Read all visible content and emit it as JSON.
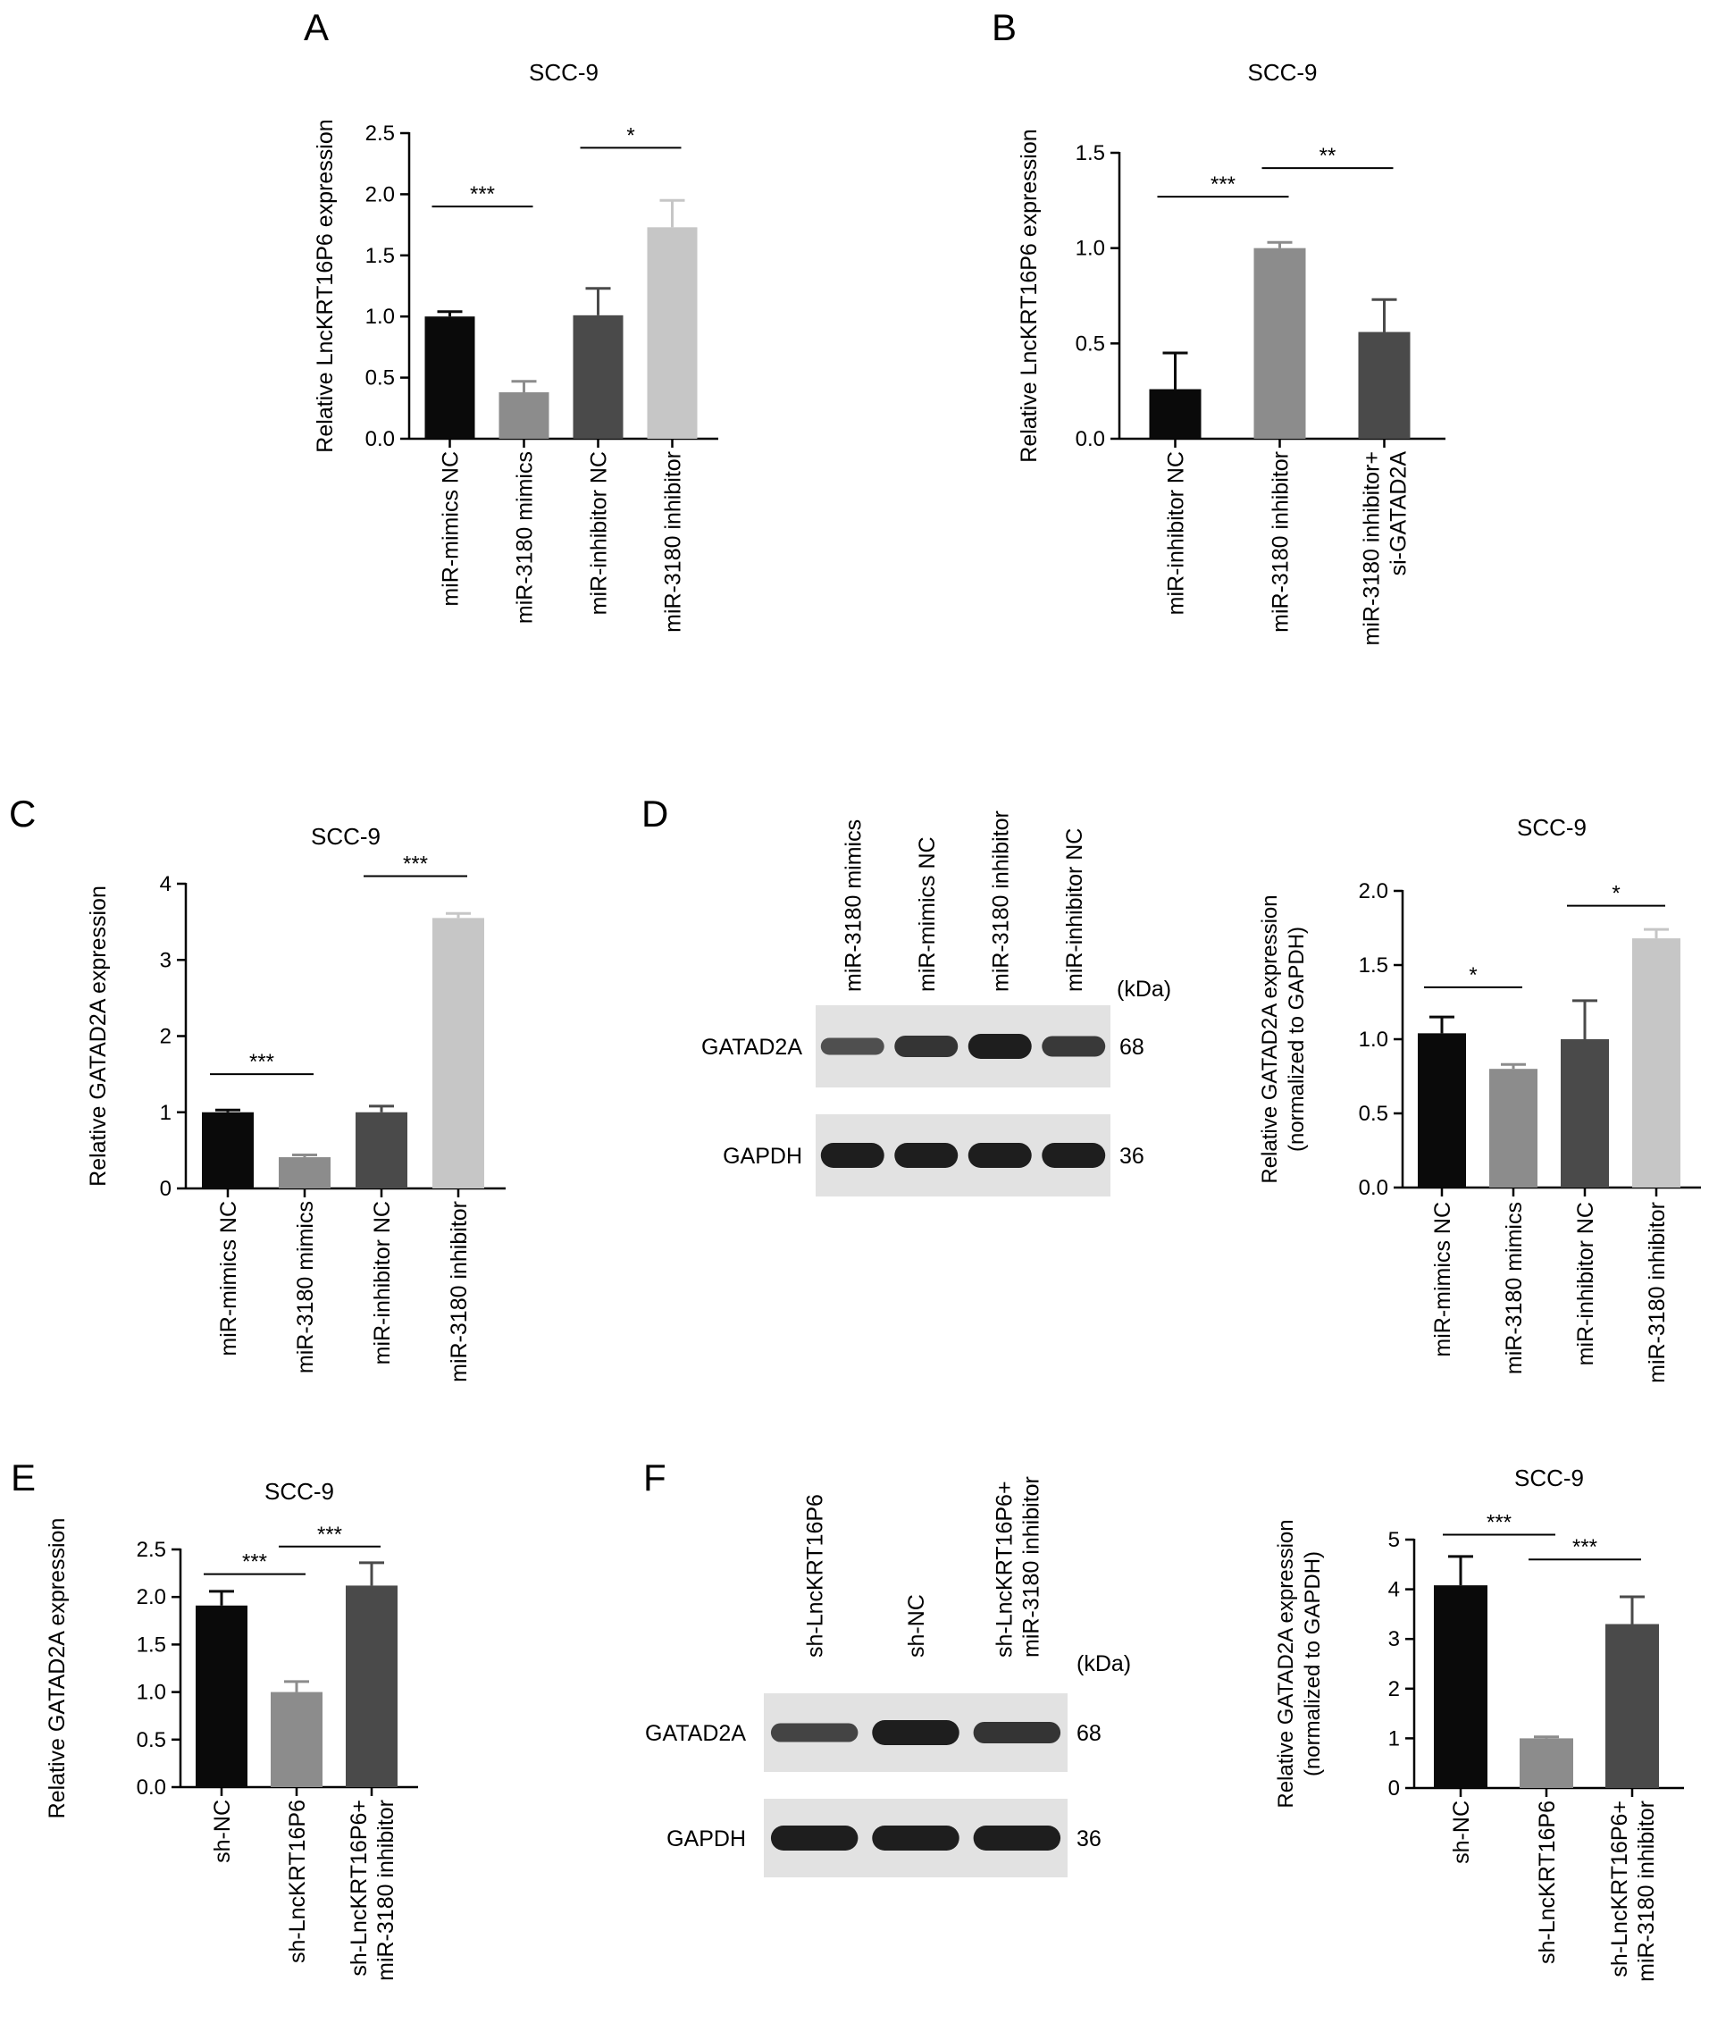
{
  "colors": {
    "black": "#0a0a0a",
    "mid_gray": "#8c8c8c",
    "dark_gray": "#4a4a4a",
    "light_gray": "#c6c6c6",
    "axis": "#000000",
    "blot_background": "#e2e2e2",
    "blot_band": "#1e1e1e"
  },
  "chart_data": [
    {
      "panel": "A",
      "type": "bar",
      "title": "SCC-9",
      "ylabel": "Relative LncKRT16P6 expression",
      "xlabel": "",
      "ylim": [
        0,
        2.5
      ],
      "yticks": [
        "0.0",
        "0.5",
        "1.0",
        "1.5",
        "2.0",
        "2.5"
      ],
      "grid": false,
      "legend": "none",
      "categories": [
        "miR-mimics NC",
        "miR-3180 mimics",
        "miR-inhibitor NC",
        "miR-3180 inhibitor"
      ],
      "values": [
        1.0,
        0.38,
        1.01,
        1.73
      ],
      "errors": [
        0.04,
        0.09,
        0.22,
        0.22
      ],
      "bar_colors": [
        "black",
        "mid_gray",
        "dark_gray",
        "light_gray"
      ],
      "significance": [
        {
          "from": 0,
          "to": 1,
          "label": "***",
          "level": 1.9
        },
        {
          "from": 2,
          "to": 3,
          "label": "*",
          "level": 2.38
        }
      ]
    },
    {
      "panel": "B",
      "type": "bar",
      "title": "SCC-9",
      "ylabel": "Relative LncKRT16P6 expression",
      "xlabel": "",
      "ylim": [
        0,
        1.5
      ],
      "yticks": [
        "0.0",
        "0.5",
        "1.0",
        "1.5"
      ],
      "grid": false,
      "legend": "none",
      "categories": [
        "miR-inhibitor NC",
        "miR-3180 inhibitor",
        "miR-3180 inhibitor+\nsi-GATAD2A"
      ],
      "values": [
        0.26,
        1.0,
        0.56
      ],
      "errors": [
        0.19,
        0.03,
        0.17
      ],
      "bar_colors": [
        "black",
        "mid_gray",
        "dark_gray"
      ],
      "significance": [
        {
          "from": 0,
          "to": 1,
          "label": "***",
          "level": 1.27
        },
        {
          "from": 1,
          "to": 2,
          "label": "**",
          "level": 1.42
        }
      ]
    },
    {
      "panel": "C",
      "type": "bar",
      "title": "SCC-9",
      "ylabel": "Relative GATAD2A expression",
      "xlabel": "",
      "ylim": [
        0,
        4
      ],
      "yticks": [
        "0",
        "1",
        "2",
        "3",
        "4"
      ],
      "grid": false,
      "legend": "none",
      "categories": [
        "miR-mimics NC",
        "miR-3180 mimics",
        "miR-inhibitor NC",
        "miR-3180 inhibitor"
      ],
      "values": [
        1.0,
        0.41,
        1.0,
        3.55
      ],
      "errors": [
        0.03,
        0.03,
        0.08,
        0.06
      ],
      "bar_colors": [
        "black",
        "mid_gray",
        "dark_gray",
        "light_gray"
      ],
      "significance": [
        {
          "from": 0,
          "to": 1,
          "label": "***",
          "level": 1.5
        },
        {
          "from": 2,
          "to": 3,
          "label": "***",
          "level": 4.1
        }
      ]
    },
    {
      "panel": "D",
      "type": "bar",
      "title": "SCC-9",
      "ylabel": "Relative GATAD2A expression\n(normalized to GAPDH)",
      "xlabel": "",
      "ylim": [
        0,
        2.0
      ],
      "yticks": [
        "0.0",
        "0.5",
        "1.0",
        "1.5",
        "2.0"
      ],
      "grid": false,
      "legend": "none",
      "categories": [
        "miR-mimics NC",
        "miR-3180 mimics",
        "miR-inhibitor NC",
        "miR-3180 inhibitor"
      ],
      "values": [
        1.04,
        0.8,
        1.0,
        1.68
      ],
      "errors": [
        0.11,
        0.03,
        0.26,
        0.06
      ],
      "bar_colors": [
        "black",
        "mid_gray",
        "dark_gray",
        "light_gray"
      ],
      "significance": [
        {
          "from": 0,
          "to": 1,
          "label": "*",
          "level": 1.35
        },
        {
          "from": 2,
          "to": 3,
          "label": "*",
          "level": 1.9
        }
      ]
    },
    {
      "panel": "E",
      "type": "bar",
      "title": "SCC-9",
      "ylabel": "Relative GATAD2A expression",
      "xlabel": "",
      "ylim": [
        0,
        2.5
      ],
      "yticks": [
        "0.0",
        "0.5",
        "1.0",
        "1.5",
        "2.0",
        "2.5"
      ],
      "grid": false,
      "legend": "none",
      "categories": [
        "sh-NC",
        "sh-LncKRT16P6",
        "sh-LncKRT16P6+\nmiR-3180 inhibitor"
      ],
      "values": [
        1.91,
        1.0,
        2.12
      ],
      "errors": [
        0.15,
        0.11,
        0.24
      ],
      "bar_colors": [
        "black",
        "mid_gray",
        "dark_gray"
      ],
      "significance": [
        {
          "from": 0,
          "to": 1,
          "label": "***",
          "level": 2.24
        },
        {
          "from": 1,
          "to": 2,
          "label": "***",
          "level": 2.53
        }
      ]
    },
    {
      "panel": "F",
      "type": "bar",
      "title": "SCC-9",
      "ylabel": "Relative GATAD2A expression\n(normalized to GAPDH)",
      "xlabel": "",
      "ylim": [
        0,
        5
      ],
      "yticks": [
        "0",
        "1",
        "2",
        "3",
        "4",
        "5"
      ],
      "grid": false,
      "legend": "none",
      "categories": [
        "sh-NC",
        "sh-LncKRT16P6",
        "sh-LncKRT16P6+\nmiR-3180 inhibitor"
      ],
      "values": [
        4.08,
        1.0,
        3.3
      ],
      "errors": [
        0.58,
        0.03,
        0.55
      ],
      "bar_colors": [
        "black",
        "mid_gray",
        "dark_gray"
      ],
      "significance": [
        {
          "from": 0,
          "to": 1,
          "label": "***",
          "level": 5.1
        },
        {
          "from": 1,
          "to": 2,
          "label": "***",
          "level": 4.6
        }
      ]
    }
  ],
  "panel_letters": [
    "A",
    "B",
    "C",
    "D",
    "E",
    "F"
  ],
  "blots": [
    {
      "panel": "D",
      "lanes": [
        "miR-3180 mimics",
        "miR-mimics NC",
        "miR-3180 inhibitor",
        "miR-inhibitor NC"
      ],
      "kda_header": "(kDa)",
      "rows": [
        {
          "protein": "GATAD2A",
          "kda": "68",
          "intensities": [
            0.55,
            0.8,
            1.0,
            0.75
          ]
        },
        {
          "protein": "GAPDH",
          "kda": "36",
          "intensities": [
            1.0,
            1.0,
            1.0,
            1.0
          ]
        }
      ]
    },
    {
      "panel": "F",
      "lanes": [
        "sh-LncKRT16P6",
        "sh-NC",
        "sh-LncKRT16P6+\nmiR-3180 inhibitor"
      ],
      "kda_header": "(kDa)",
      "rows": [
        {
          "protein": "GATAD2A",
          "kda": "68",
          "intensities": [
            0.65,
            1.0,
            0.8
          ]
        },
        {
          "protein": "GAPDH",
          "kda": "36",
          "intensities": [
            1.0,
            1.0,
            1.0
          ]
        }
      ]
    }
  ]
}
